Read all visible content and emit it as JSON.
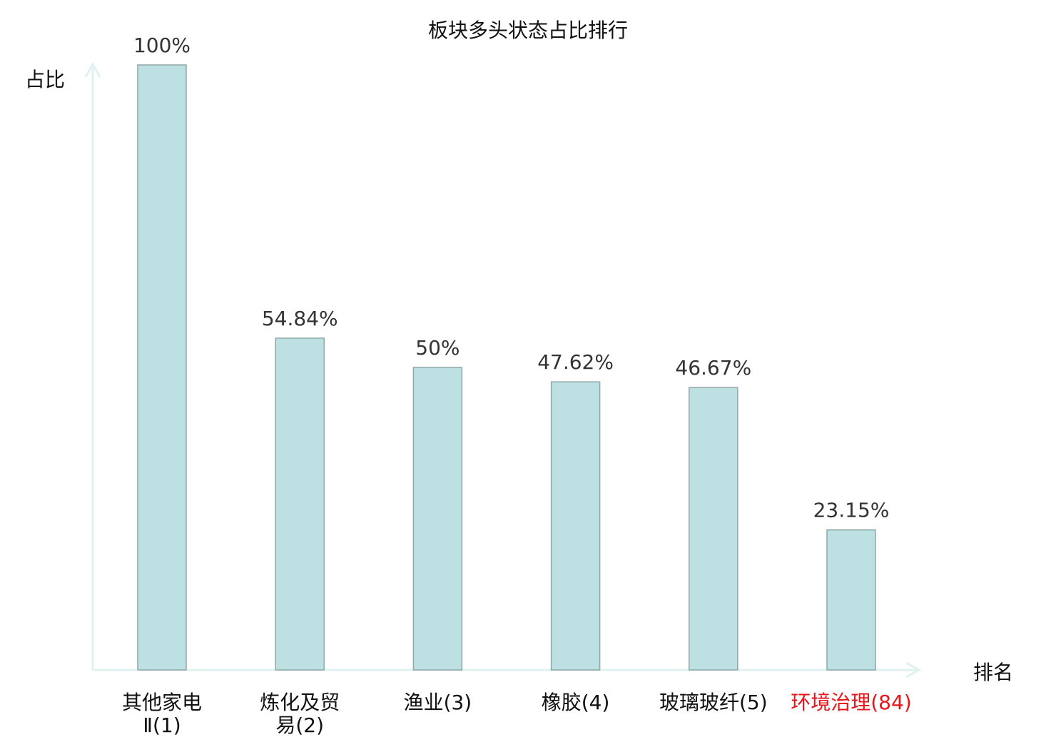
{
  "chart_data": {
    "type": "bar",
    "title": "板块多头状态占比排行",
    "xlabel": "排名",
    "ylabel": "占比",
    "ylim": [
      0,
      100
    ],
    "grid": false,
    "categories": [
      {
        "name": "其他家电Ⅱ",
        "rank": "(1)",
        "highlight": false
      },
      {
        "name": "炼化及贸易",
        "rank": "(2)",
        "highlight": false
      },
      {
        "name": "渔业",
        "rank": "(3)",
        "highlight": false
      },
      {
        "name": "橡胶",
        "rank": "(4)",
        "highlight": false
      },
      {
        "name": "玻璃玻纤",
        "rank": "(5)",
        "highlight": false
      },
      {
        "name": "环境治理",
        "rank": "(84)",
        "highlight": true
      }
    ],
    "values": [
      100,
      54.84,
      50,
      47.62,
      46.67,
      23.15
    ],
    "data_labels": [
      "100%",
      "54.84%",
      "50%",
      "47.62%",
      "46.67%",
      "23.15%"
    ],
    "colors": {
      "bar_fill": "#bde0e3",
      "bar_stroke": "#8fa8a8",
      "axis": "#e0f2ef",
      "highlight_label": "#e8141a",
      "text": "#222222"
    }
  }
}
